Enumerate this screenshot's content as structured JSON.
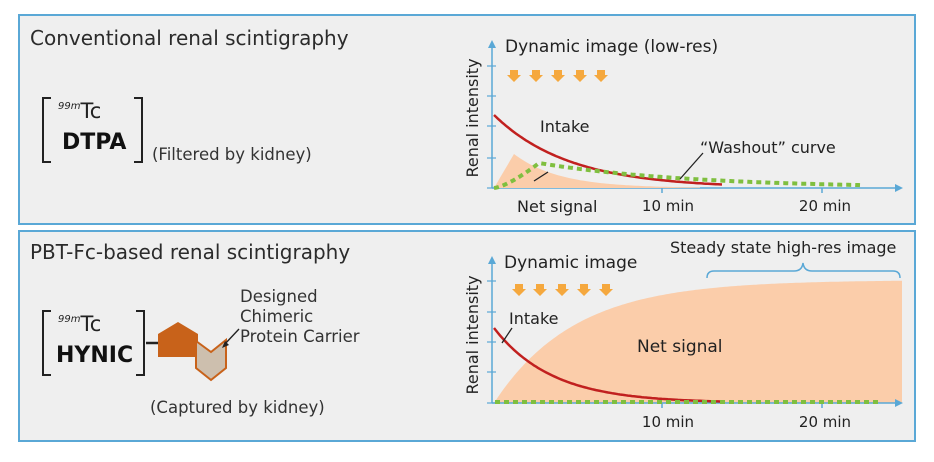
{
  "colors": {
    "panel_bg": "#efefef",
    "panel_border": "#5aa8d6",
    "intake_curve": "#c1201f",
    "washout_curve": "#7fbf3f",
    "net_signal_fill": "#fbcdaa",
    "axis": "#5aa8d6",
    "arrow_fill": "#f5a83e",
    "carrier_dark": "#c8621a",
    "carrier_light": "#cdbfae"
  },
  "top": {
    "title": "Conventional renal scintigraphy",
    "tc_mass": "99m",
    "tc_symbol": "Tc",
    "chelator": "DTPA",
    "note": "(Filtered by kidney)",
    "chart_title": "Dynamic image (low-res)",
    "y_axis_label": "Renal intensity",
    "intake_label": "Intake",
    "washout_label": "“Washout” curve",
    "net_signal_label": "Net signal",
    "tick_10": "10 min",
    "tick_20": "20 min",
    "arrow_icon": "down-arrow-icon"
  },
  "bottom": {
    "title": "PBT-Fc-based renal scintigraphy",
    "tc_mass": "99m",
    "tc_symbol": "Tc",
    "chelator": "HYNIC",
    "carrier_line1": "Designed",
    "carrier_line2": "Chimeric",
    "carrier_line3": "Protein Carrier",
    "note": "(Captured by kidney)",
    "chart_title": "Dynamic image",
    "steady_label": "Steady state high-res image",
    "y_axis_label": "Renal intensity",
    "intake_label": "Intake",
    "net_signal_label": "Net signal",
    "tick_10": "10 min",
    "tick_20": "20 min",
    "arrow_icon": "down-arrow-icon"
  }
}
